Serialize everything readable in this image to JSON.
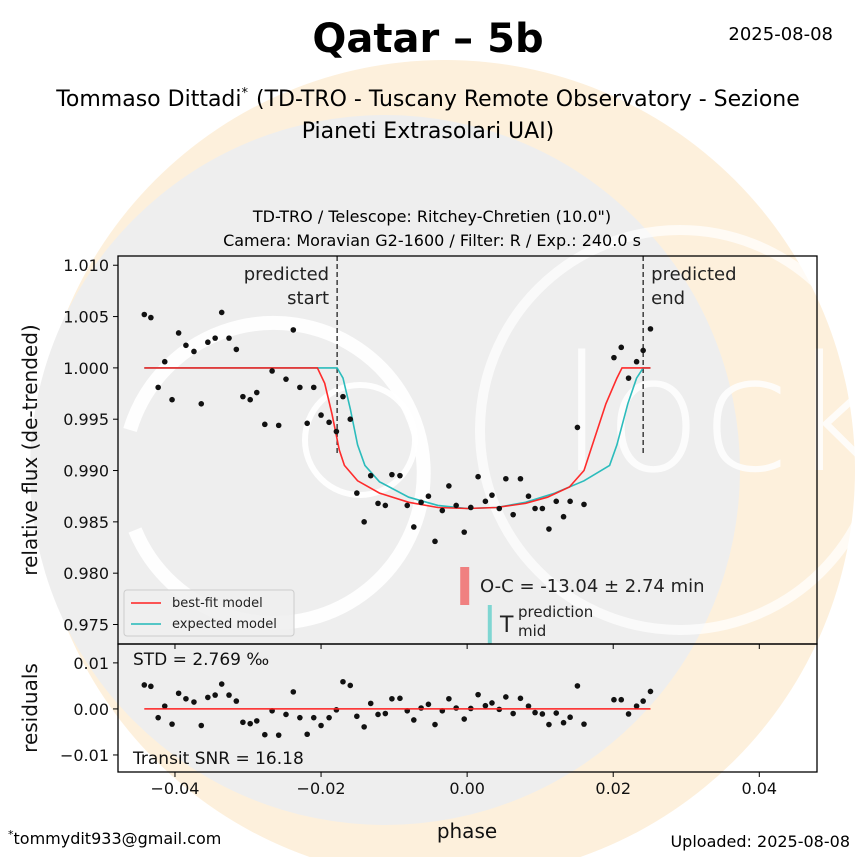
{
  "header": {
    "title": "Qatar – 5b",
    "date": "2025-08-08",
    "author": "Tommaso Dittadi",
    "author_mark": "*",
    "affiliation_line1": "(TD-TRO - Tuscany Remote Observatory - Sezione",
    "affiliation_line2": "Pianeti Extrasolari UAI)"
  },
  "footer": {
    "email_mark": "*",
    "email": "tommydit933@gmail.com",
    "uploaded": "Uploaded: 2025-08-08"
  },
  "colors": {
    "best_fit": "#ff2020",
    "expected": "#20b8b8",
    "oc_bar": "#f08080",
    "tmid_bar": "#7fd6d2",
    "points": "#111111"
  },
  "chart_data": [
    {
      "type": "scatter",
      "title_line1": "TD-TRO / Telescope: Ritchey-Chretien (10.0\")",
      "title_line2": "Camera: Moravian G2-1600 / Filter: R / Exp.: 240.0 s",
      "ylabel": "relative flux (de-trended)",
      "xlim": [
        -0.0478,
        0.0479
      ],
      "ylim": [
        0.9731,
        1.0109
      ],
      "yticks": [
        "1.010",
        "1.005",
        "1.000",
        "0.995",
        "0.990",
        "0.985",
        "0.980",
        "0.975"
      ],
      "ytick_values": [
        1.01,
        1.005,
        1.0,
        0.995,
        0.99,
        0.985,
        0.98,
        0.975
      ],
      "x": [
        -0.0442,
        -0.0433,
        -0.0423,
        -0.0414,
        -0.0404,
        -0.0395,
        -0.0385,
        -0.0374,
        -0.0364,
        -0.0355,
        -0.0345,
        -0.0336,
        -0.0326,
        -0.0316,
        -0.0307,
        -0.0297,
        -0.0288,
        -0.0277,
        -0.0267,
        -0.0258,
        -0.0248,
        -0.0238,
        -0.0229,
        -0.0219,
        -0.021,
        -0.02,
        -0.0189,
        -0.0179,
        -0.017,
        -0.016,
        -0.0151,
        -0.0141,
        -0.0132,
        -0.0122,
        -0.0112,
        -0.0103,
        -0.0092,
        -0.0082,
        -0.0073,
        -0.0063,
        -0.0053,
        -0.0044,
        -0.0034,
        -0.0025,
        -0.0015,
        -0.0004,
        0.0005,
        0.0015,
        0.0025,
        0.0034,
        0.0044,
        0.0053,
        0.0063,
        0.0073,
        0.0084,
        0.0093,
        0.0103,
        0.0112,
        0.0122,
        0.0132,
        0.0141,
        0.0151,
        0.016,
        0.0201,
        0.0211,
        0.0221,
        0.0232,
        0.0241,
        0.0251
      ],
      "flux": [
        1.0052,
        1.0049,
        0.9981,
        1.0006,
        0.9969,
        1.0034,
        1.0022,
        1.0016,
        0.9965,
        1.0025,
        1.0029,
        1.0054,
        1.0029,
        1.0018,
        0.9972,
        0.9969,
        0.9976,
        0.9945,
        0.9997,
        0.9944,
        0.9989,
        1.0037,
        0.9981,
        0.9946,
        0.9981,
        0.9954,
        0.9947,
        0.9938,
        0.9972,
        0.995,
        0.9878,
        0.985,
        0.9895,
        0.9868,
        0.9866,
        0.9896,
        0.9895,
        0.9866,
        0.9845,
        0.9869,
        0.9875,
        0.9831,
        0.9861,
        0.9885,
        0.9866,
        0.984,
        0.9864,
        0.9894,
        0.987,
        0.9876,
        0.9863,
        0.9892,
        0.9857,
        0.9892,
        0.9875,
        0.9863,
        0.9863,
        0.9843,
        0.987,
        0.9855,
        0.987,
        0.9942,
        0.9867,
        1.001,
        1.002,
        0.999,
        1.0006,
        1.0017,
        1.0038
      ],
      "series": [
        {
          "name": "best-fit model",
          "points": [
            [
              -0.0442,
              1.0
            ],
            [
              -0.0205,
              1.0
            ],
            [
              -0.0195,
              0.9985
            ],
            [
              -0.0185,
              0.9955
            ],
            [
              -0.0175,
              0.992
            ],
            [
              -0.0168,
              0.9905
            ],
            [
              -0.015,
              0.989
            ],
            [
              -0.012,
              0.9878
            ],
            [
              -0.008,
              0.9869
            ],
            [
              -0.004,
              0.9864
            ],
            [
              0.0,
              0.9863
            ],
            [
              0.004,
              0.9864
            ],
            [
              0.008,
              0.9868
            ],
            [
              0.011,
              0.9874
            ],
            [
              0.014,
              0.9884
            ],
            [
              0.016,
              0.99
            ],
            [
              0.019,
              0.9965
            ],
            [
              0.0205,
              0.999
            ],
            [
              0.0212,
              1.0
            ],
            [
              0.0251,
              1.0
            ]
          ]
        },
        {
          "name": "expected model",
          "points": [
            [
              -0.0442,
              1.0
            ],
            [
              -0.0178,
              1.0
            ],
            [
              -0.017,
              0.999
            ],
            [
              -0.016,
              0.996
            ],
            [
              -0.015,
              0.9925
            ],
            [
              -0.014,
              0.9905
            ],
            [
              -0.012,
              0.9889
            ],
            [
              -0.008,
              0.9874
            ],
            [
              -0.004,
              0.9866
            ],
            [
              0.0,
              0.9863
            ],
            [
              0.004,
              0.9864
            ],
            [
              0.008,
              0.9869
            ],
            [
              0.012,
              0.9878
            ],
            [
              0.016,
              0.989
            ],
            [
              0.0195,
              0.9905
            ],
            [
              0.0205,
              0.9925
            ],
            [
              0.022,
              0.9965
            ],
            [
              0.0232,
              0.999
            ],
            [
              0.0241,
              1.0
            ],
            [
              0.0251,
              1.0
            ]
          ]
        }
      ],
      "legend": [
        "best-fit model",
        "expected model"
      ],
      "legend_position": "lower-left",
      "annotations": {
        "predicted_start": {
          "label1": "predicted",
          "label2": "start",
          "x": -0.0178
        },
        "predicted_end": {
          "label1": "predicted",
          "label2": "end",
          "x": 0.0241
        },
        "oc_text": "O-C = -13.04 ± 2.74 min",
        "oc_x": -0.0004,
        "tmid_T": "T",
        "tmid_sup": "prediction",
        "tmid_sub": "mid",
        "tmid_x": 0.0031
      }
    },
    {
      "type": "scatter",
      "ylabel": "residuals",
      "xlabel": "phase",
      "ylim": [
        -0.0137,
        0.0141
      ],
      "yticks": [
        "0.01",
        "0.00",
        "−0.01"
      ],
      "ytick_values": [
        0.01,
        0.0,
        -0.01
      ],
      "xticks": [
        "−0.04",
        "−0.02",
        "0.00",
        "0.02",
        "0.04"
      ],
      "xtick_values": [
        -0.04,
        -0.02,
        0.0,
        0.02,
        0.04
      ],
      "residuals": [
        0.0052,
        0.0049,
        -0.0019,
        0.0006,
        -0.0033,
        0.0034,
        0.0022,
        0.0015,
        -0.0036,
        0.0025,
        0.003,
        0.0054,
        0.003,
        0.0017,
        -0.0029,
        -0.0032,
        -0.0026,
        -0.0056,
        -0.0004,
        -0.0057,
        -0.0012,
        0.0037,
        -0.0019,
        -0.0055,
        -0.0019,
        -0.0036,
        -0.0019,
        -0.0002,
        0.0059,
        0.0051,
        -0.0016,
        -0.0039,
        0.0012,
        -0.0012,
        -0.001,
        0.0022,
        0.0023,
        -0.0004,
        -0.0024,
        0.0002,
        0.001,
        -0.0034,
        -0.0004,
        0.0022,
        0.0002,
        -0.0022,
        0.0001,
        0.0031,
        0.0007,
        0.0013,
        -0.0001,
        0.0026,
        -0.001,
        0.0023,
        0.0006,
        -0.0008,
        -0.0011,
        -0.0034,
        -0.0009,
        -0.003,
        -0.0018,
        0.005,
        -0.0033,
        0.002,
        0.002,
        -0.0011,
        0.0006,
        0.0017,
        0.0038
      ],
      "std_text": "STD = 2.769 ‰",
      "snr_text": "Transit SNR = 16.18"
    }
  ]
}
